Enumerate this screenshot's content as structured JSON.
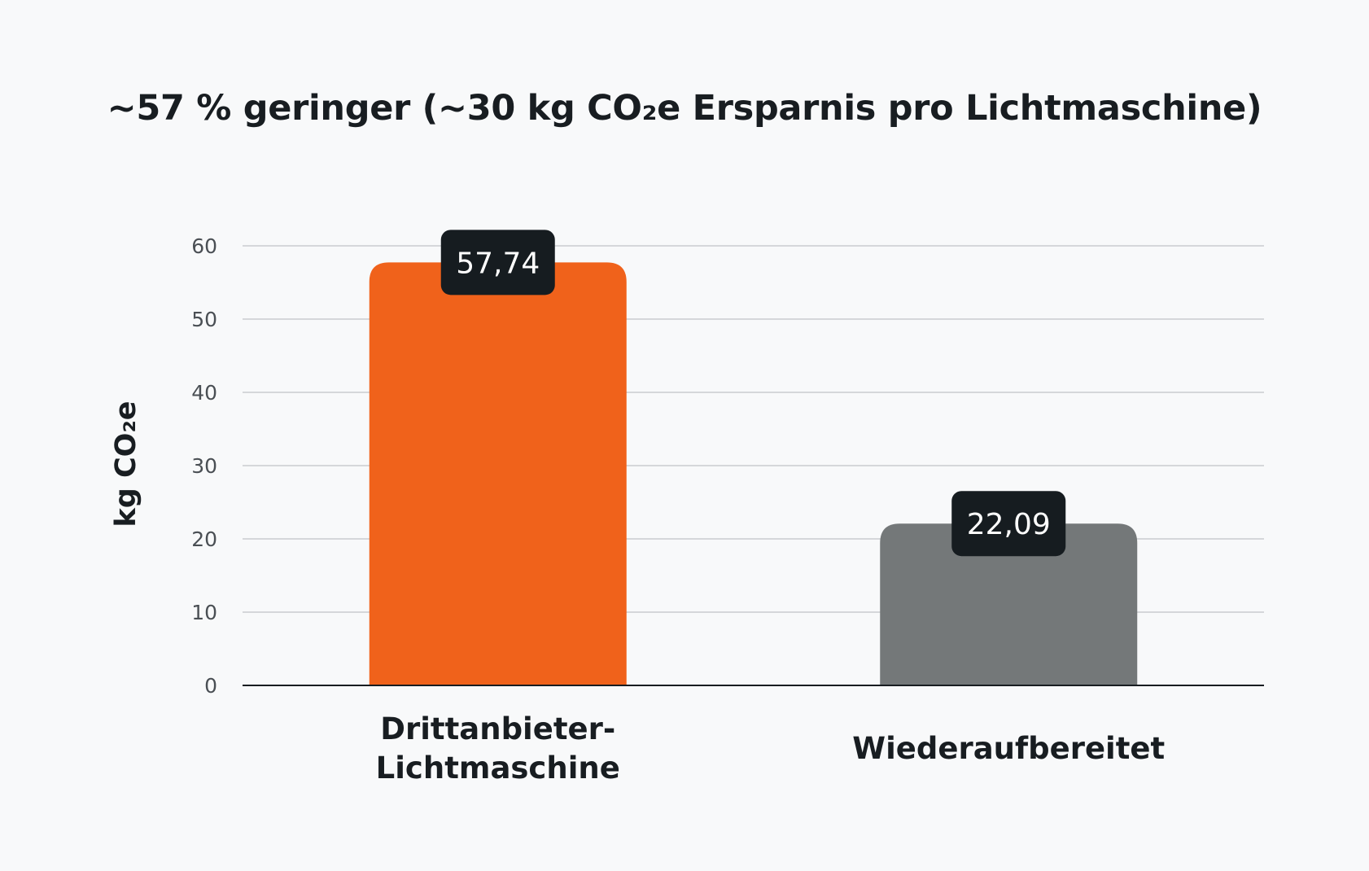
{
  "chart_data": {
    "type": "bar",
    "title": "~57 % geringer (~30 kg CO₂e Ersparnis pro Lichtmaschine)",
    "ylabel": "kg CO₂e",
    "xlabel": "",
    "ylim": [
      0,
      60
    ],
    "yticks": [
      0,
      10,
      20,
      30,
      40,
      50,
      60
    ],
    "grid": true,
    "categories": [
      [
        "Drittanbieter-",
        "Lichtmaschine"
      ],
      [
        "Wiederaufbereitet"
      ]
    ],
    "values": [
      57.74,
      22.09
    ],
    "value_labels": [
      "57,74",
      "22,09"
    ],
    "colors": [
      "#f0621b",
      "#747879"
    ]
  }
}
